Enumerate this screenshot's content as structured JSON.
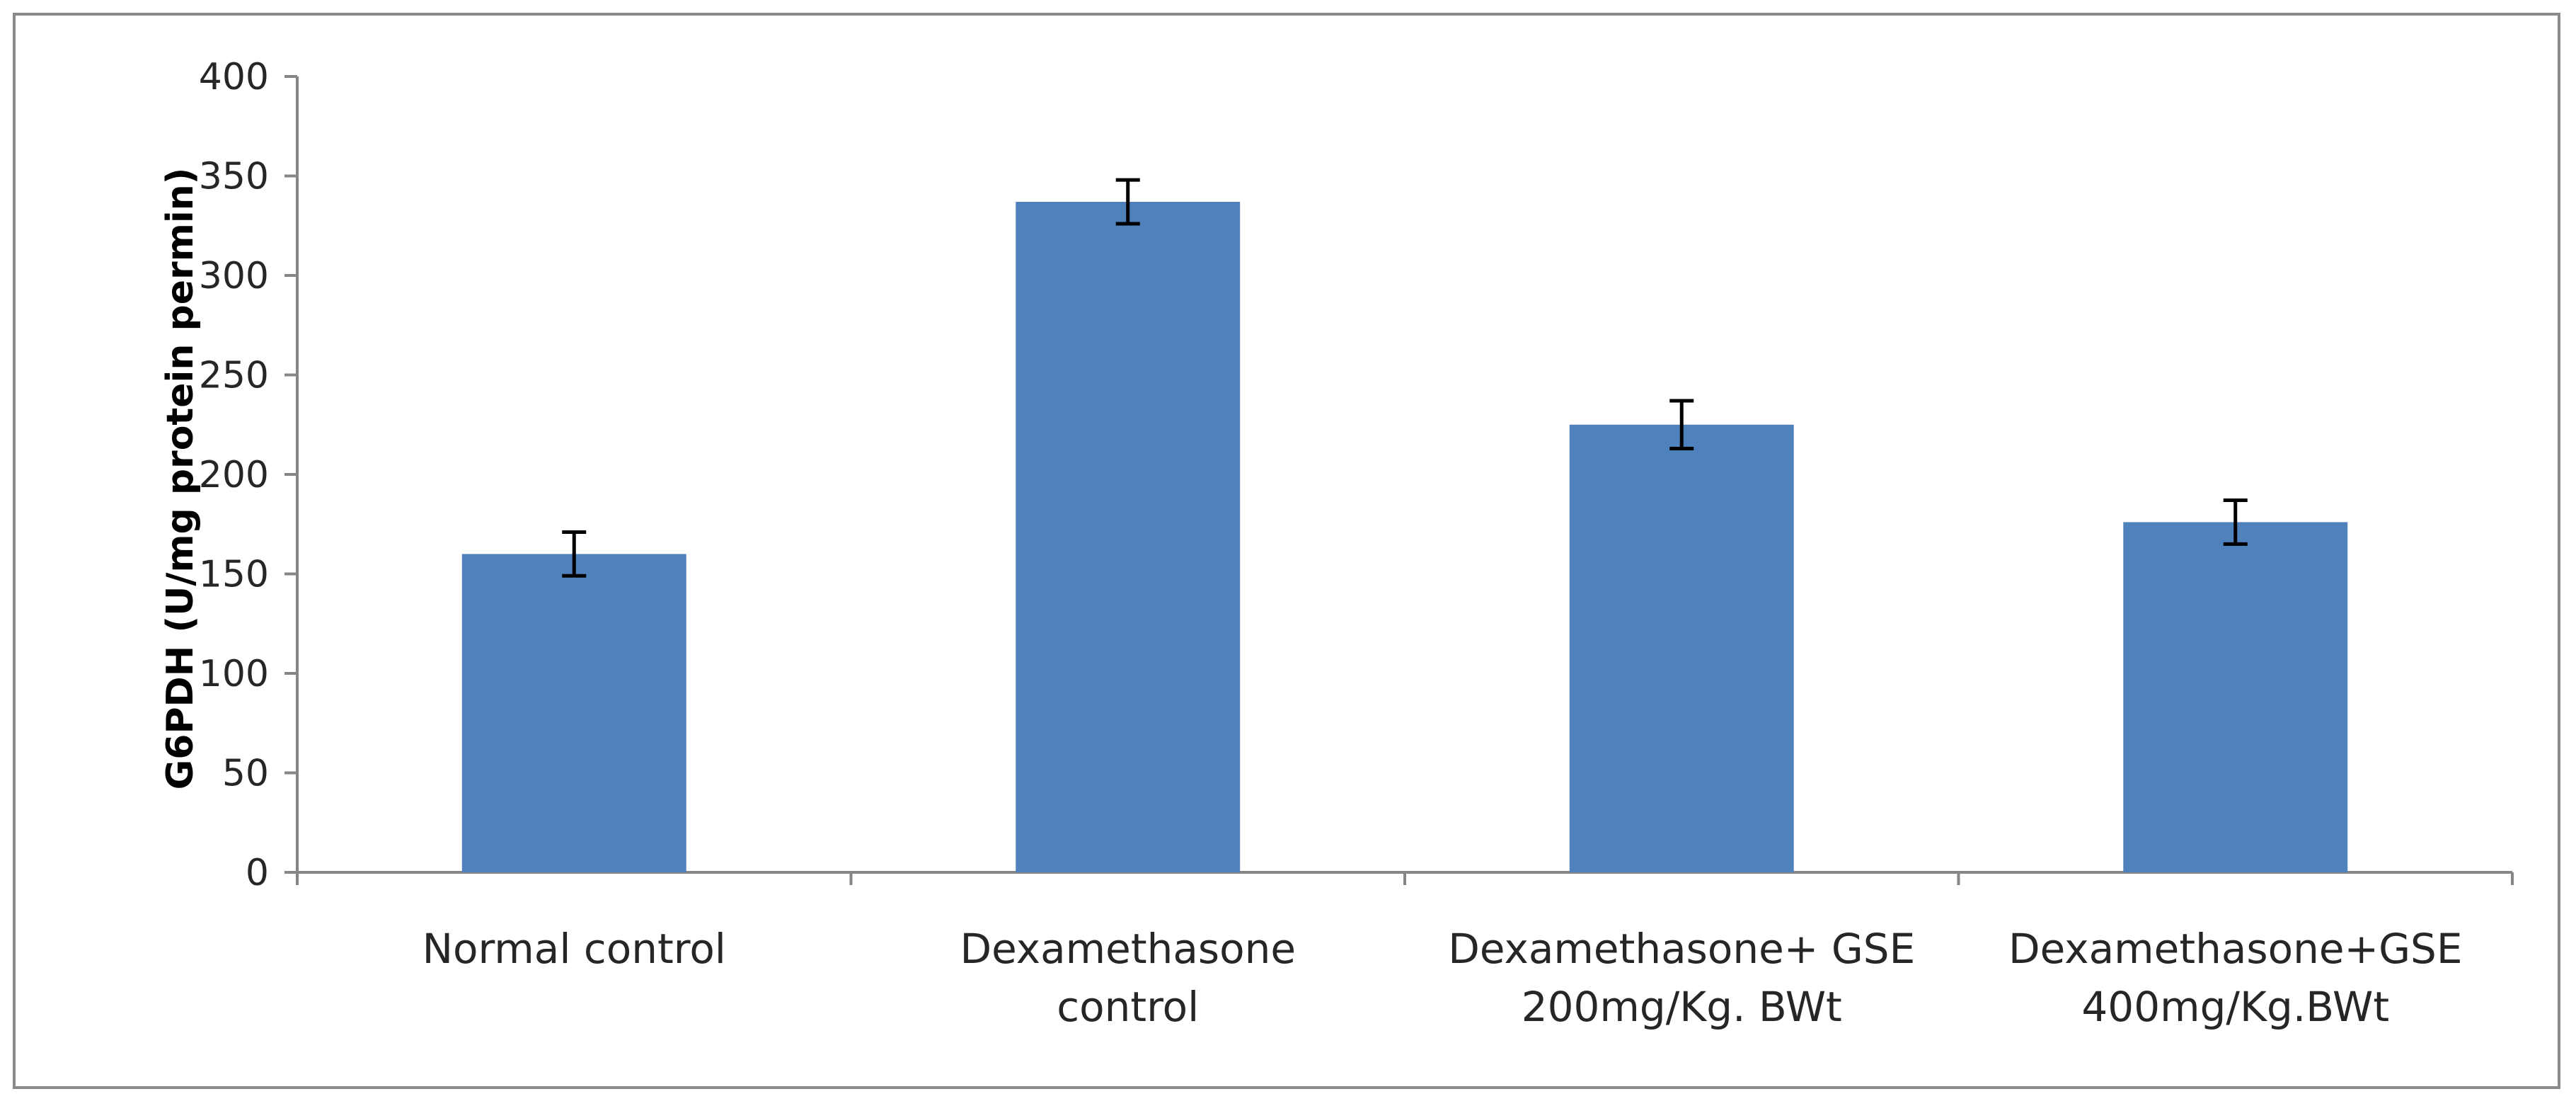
{
  "chart_data": {
    "type": "bar",
    "title": "",
    "xlabel": "",
    "ylabel": "G6PDH  (U/mg protein permin)",
    "ylim": [
      0,
      400
    ],
    "yticks": [
      0,
      50,
      100,
      150,
      200,
      250,
      300,
      350,
      400
    ],
    "grid": false,
    "legend": "none",
    "categories": [
      [
        "Normal control"
      ],
      [
        "Dexamethasone",
        "control"
      ],
      [
        "Dexamethasone+ GSE",
        "200mg/Kg. BWt"
      ],
      [
        "Dexamethasone+GSE",
        "400mg/Kg.BWt"
      ]
    ],
    "series": [
      {
        "name": "G6PDH",
        "values": [
          160,
          337,
          225,
          176
        ],
        "errors": [
          11,
          11,
          12,
          11
        ]
      }
    ],
    "colors": {
      "bar": "#4F81BD",
      "axis": "#868686",
      "error": "#000000"
    }
  }
}
